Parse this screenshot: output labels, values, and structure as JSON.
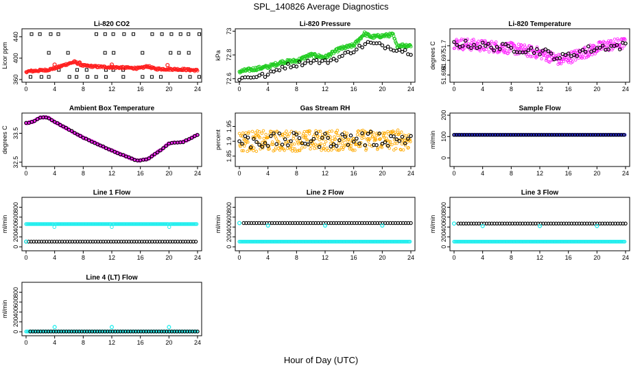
{
  "figure": {
    "title": "SPL_140826  Average Diagnostics",
    "xlabel": "Hour of Day (UTC)"
  },
  "colors": {
    "black": "#000000",
    "red": "#ff2020",
    "green": "#22cc22",
    "magenta": "#ff22ff",
    "orange": "#ffaa00",
    "cyan": "#22eeee",
    "blue": "#2222cc"
  },
  "chart_data": [
    {
      "id": "co2",
      "type": "scatter",
      "title": "Li-820 CO2",
      "ylabel": "Licor ppm",
      "xlim": [
        0,
        24
      ],
      "xticks": [
        0,
        4,
        8,
        12,
        16,
        20,
        24
      ],
      "ylim": [
        355,
        455
      ],
      "yticks": [
        360,
        400,
        440
      ],
      "series": [
        {
          "name": "black",
          "color": "black",
          "kind": "co2_black"
        },
        {
          "name": "red",
          "color": "red",
          "kind": "profile",
          "points": [
            [
              0,
              375
            ],
            [
              3,
              378
            ],
            [
              4.5,
              383
            ],
            [
              5.5,
              388
            ],
            [
              6.8,
              393
            ],
            [
              8,
              386
            ],
            [
              10,
              384
            ],
            [
              14,
              382
            ],
            [
              16,
              381
            ],
            [
              17,
              385
            ],
            [
              18,
              380
            ],
            [
              22,
              379
            ],
            [
              24,
              377
            ]
          ],
          "noise": 2,
          "markers": [
            [
              4,
              388
            ],
            [
              7.5,
              392
            ],
            [
              12,
              388
            ],
            [
              19.8,
              387
            ]
          ]
        }
      ]
    },
    {
      "id": "pres",
      "type": "scatter",
      "title": "Li-820 Pressure",
      "ylabel": "kPa",
      "xlim": [
        0,
        24
      ],
      "xticks": [
        0,
        4,
        8,
        12,
        16,
        20,
        24
      ],
      "ylim": [
        72.57,
        73.02
      ],
      "yticks": [
        72.6,
        72.8,
        73.0
      ],
      "series": [
        {
          "name": "green",
          "color": "green",
          "kind": "profile",
          "points": [
            [
              0,
              72.66
            ],
            [
              2,
              72.68
            ],
            [
              4,
              72.7
            ],
            [
              6,
              72.74
            ],
            [
              8,
              72.75
            ],
            [
              10,
              72.8
            ],
            [
              12,
              72.78
            ],
            [
              14,
              72.85
            ],
            [
              16,
              72.88
            ],
            [
              17.5,
              72.98
            ],
            [
              18.5,
              72.95
            ],
            [
              20,
              72.96
            ],
            [
              21.5,
              72.97
            ],
            [
              22,
              72.88
            ],
            [
              24,
              72.88
            ]
          ],
          "noise": 0.015
        },
        {
          "name": "black",
          "color": "black",
          "kind": "profile_sparse",
          "points": [
            [
              0,
              72.6
            ],
            [
              2,
              72.62
            ],
            [
              4,
              72.63
            ],
            [
              6,
              72.7
            ],
            [
              8,
              72.72
            ],
            [
              10,
              72.75
            ],
            [
              12,
              72.74
            ],
            [
              14,
              72.78
            ],
            [
              16,
              72.84
            ],
            [
              18,
              72.9
            ],
            [
              20,
              72.88
            ],
            [
              22,
              72.85
            ],
            [
              24,
              72.82
            ]
          ],
          "noise": 0.02
        }
      ]
    },
    {
      "id": "temp",
      "type": "scatter",
      "title": "Li-820 Temperature",
      "ylabel": "degrees C",
      "xlim": [
        0,
        24
      ],
      "xticks": [
        0,
        4,
        8,
        12,
        16,
        20,
        24
      ],
      "ylim": [
        51.6925,
        51.7035
      ],
      "yticks": [
        51.694,
        51.697,
        51.7
      ],
      "series": [
        {
          "name": "magenta",
          "color": "magenta",
          "kind": "band",
          "points": [
            [
              0,
              51.7005
            ],
            [
              4,
              51.7
            ],
            [
              8,
              51.6995
            ],
            [
              12,
              51.6985
            ],
            [
              15,
              51.697
            ],
            [
              18,
              51.6985
            ],
            [
              21,
              51.7
            ],
            [
              24,
              51.7005
            ]
          ],
          "noise": 0.0012
        },
        {
          "name": "black",
          "color": "black",
          "kind": "profile_sparse",
          "points": [
            [
              0,
              51.7005
            ],
            [
              4,
              51.7
            ],
            [
              8,
              51.6995
            ],
            [
              12,
              51.699
            ],
            [
              15,
              51.6975
            ],
            [
              18,
              51.699
            ],
            [
              21,
              51.6998
            ],
            [
              24,
              51.7
            ]
          ],
          "noise": 0.0008
        }
      ]
    },
    {
      "id": "box",
      "type": "scatter",
      "title": "Ambient Box Temperature",
      "ylabel": "degrees C",
      "xlim": [
        0,
        24
      ],
      "xticks": [
        0,
        4,
        8,
        12,
        16,
        20,
        24
      ],
      "ylim": [
        32.35,
        34.2
      ],
      "yticks": [
        32.5,
        33.5
      ],
      "series": [
        {
          "name": "magenta",
          "color": "magenta",
          "kind": "profile",
          "points": [
            [
              0,
              33.85
            ],
            [
              1,
              33.9
            ],
            [
              2,
              34.05
            ],
            [
              3,
              34.05
            ],
            [
              4,
              33.9
            ],
            [
              8,
              33.35
            ],
            [
              12,
              32.9
            ],
            [
              15.5,
              32.55
            ],
            [
              17,
              32.6
            ],
            [
              19,
              32.95
            ],
            [
              20,
              33.15
            ],
            [
              22,
              33.2
            ],
            [
              24,
              33.45
            ]
          ],
          "noise": 0.02
        },
        {
          "name": "black",
          "color": "black",
          "kind": "profile_sparse",
          "points": [
            [
              0,
              33.85
            ],
            [
              1,
              33.9
            ],
            [
              2,
              34.05
            ],
            [
              3,
              34.05
            ],
            [
              4,
              33.9
            ],
            [
              8,
              33.35
            ],
            [
              12,
              32.9
            ],
            [
              15.5,
              32.55
            ],
            [
              17,
              32.6
            ],
            [
              19,
              32.95
            ],
            [
              20,
              33.15
            ],
            [
              22,
              33.2
            ],
            [
              24,
              33.45
            ]
          ],
          "noise": 0.01
        }
      ]
    },
    {
      "id": "rh",
      "type": "scatter",
      "title": "Gas Stream RH",
      "ylabel": "percent",
      "xlim": [
        0,
        24
      ],
      "xticks": [
        0,
        4,
        8,
        12,
        16,
        20,
        24
      ],
      "ylim": [
        1.815,
        1.995
      ],
      "yticks": [
        1.85,
        1.9,
        1.95
      ],
      "series": [
        {
          "name": "orange",
          "color": "orange",
          "kind": "band",
          "points": [
            [
              0,
              1.9
            ],
            [
              24,
              1.905
            ]
          ],
          "noise": 0.035
        },
        {
          "name": "black",
          "color": "black",
          "kind": "profile_sparse",
          "points": [
            [
              0,
              1.9
            ],
            [
              24,
              1.91
            ]
          ],
          "noise": 0.025
        }
      ]
    },
    {
      "id": "sample",
      "type": "scatter",
      "title": "Sample Flow",
      "ylabel": "ml/min",
      "xlim": [
        0,
        24
      ],
      "xticks": [
        0,
        4,
        8,
        12,
        16,
        20,
        24
      ],
      "ylim": [
        -40,
        210
      ],
      "yticks": [
        0,
        100,
        200
      ],
      "series": [
        {
          "name": "blue",
          "color": "blue",
          "kind": "constant",
          "value": 108
        },
        {
          "name": "black",
          "color": "black",
          "kind": "constant_sparse",
          "value": 108
        }
      ]
    },
    {
      "id": "l1",
      "type": "scatter",
      "title": "Line 1 Flow",
      "ylabel": "ml/min",
      "xlim": [
        0,
        24
      ],
      "xticks": [
        0,
        4,
        8,
        12,
        16,
        20,
        24
      ],
      "ylim": [
        -80,
        1000
      ],
      "yticks": [
        0,
        200,
        400,
        600,
        800
      ],
      "series": [
        {
          "name": "cyan-upper",
          "color": "cyan",
          "kind": "constant",
          "value": 460,
          "dips": [
            4,
            12,
            20
          ],
          "dip": 400
        },
        {
          "name": "black",
          "color": "black",
          "kind": "constant_sparse",
          "value": 105
        },
        {
          "name": "cyan-lower",
          "color": "cyan",
          "kind": "single",
          "points": [
            [
              0,
              105
            ]
          ]
        }
      ]
    },
    {
      "id": "l2",
      "type": "scatter",
      "title": "Line 2 Flow",
      "ylabel": "ml/min",
      "xlim": [
        0,
        24
      ],
      "xticks": [
        0,
        4,
        8,
        12,
        16,
        20,
        24
      ],
      "ylim": [
        -80,
        1000
      ],
      "yticks": [
        0,
        200,
        400,
        600,
        800
      ],
      "series": [
        {
          "name": "cyan-lower",
          "color": "cyan",
          "kind": "constant",
          "value": 105
        },
        {
          "name": "black",
          "color": "black",
          "kind": "constant_sparse",
          "value": 480,
          "start": 0.6
        },
        {
          "name": "cyan-upper",
          "color": "cyan",
          "kind": "single",
          "points": [
            [
              0,
              480
            ],
            [
              4,
              430
            ],
            [
              12,
              430
            ],
            [
              20,
              430
            ]
          ]
        }
      ]
    },
    {
      "id": "l3",
      "type": "scatter",
      "title": "Line 3 Flow",
      "ylabel": "ml/min",
      "xlim": [
        0,
        24
      ],
      "xticks": [
        0,
        4,
        8,
        12,
        16,
        20,
        24
      ],
      "ylim": [
        -80,
        1000
      ],
      "yticks": [
        0,
        200,
        400,
        600,
        800
      ],
      "series": [
        {
          "name": "cyan-lower",
          "color": "cyan",
          "kind": "constant",
          "value": 105
        },
        {
          "name": "black",
          "color": "black",
          "kind": "constant_sparse",
          "value": 470,
          "start": 0.6
        },
        {
          "name": "cyan-upper",
          "color": "cyan",
          "kind": "single",
          "points": [
            [
              0,
              470
            ],
            [
              4,
              420
            ],
            [
              12,
              420
            ],
            [
              20,
              420
            ]
          ]
        }
      ]
    },
    {
      "id": "l4",
      "type": "scatter",
      "title": "Line 4 (LT) Flow",
      "ylabel": "ml/min",
      "xlim": [
        0,
        24
      ],
      "xticks": [
        0,
        4,
        8,
        12,
        16,
        20,
        24
      ],
      "ylim": [
        -80,
        1000
      ],
      "yticks": [
        0,
        200,
        400,
        600,
        800
      ],
      "series": [
        {
          "name": "cyan",
          "color": "cyan",
          "kind": "constant",
          "value": 5
        },
        {
          "name": "black",
          "color": "black",
          "kind": "constant_sparse",
          "value": 5,
          "start": 0.6
        },
        {
          "name": "cyan-spikes",
          "color": "cyan",
          "kind": "single",
          "points": [
            [
              4,
              95
            ],
            [
              12,
              95
            ],
            [
              20,
              95
            ]
          ]
        }
      ]
    }
  ]
}
